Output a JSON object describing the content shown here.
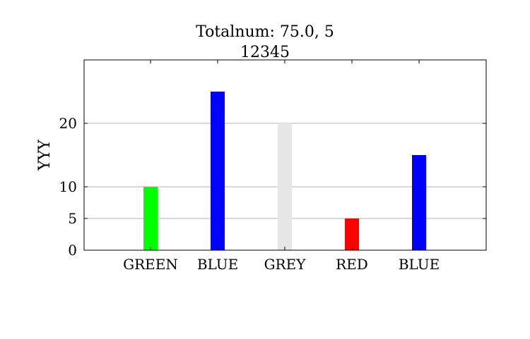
{
  "chart_data": {
    "type": "bar",
    "title": "Totalnum: 75.0, 5",
    "subtitle": "12345",
    "xlabel": "",
    "ylabel": "YYY",
    "categories": [
      "GREEN",
      "BLUE",
      "GREY",
      "RED",
      "BLUE"
    ],
    "values": [
      10,
      25,
      20,
      5,
      15
    ],
    "colors": [
      "#00ff00",
      "#0000ff",
      "#e6e6e6",
      "#ff0000",
      "#0000ff"
    ],
    "ylim": [
      0,
      30
    ],
    "yticks": [
      0,
      5,
      10,
      20
    ],
    "grid": true
  }
}
